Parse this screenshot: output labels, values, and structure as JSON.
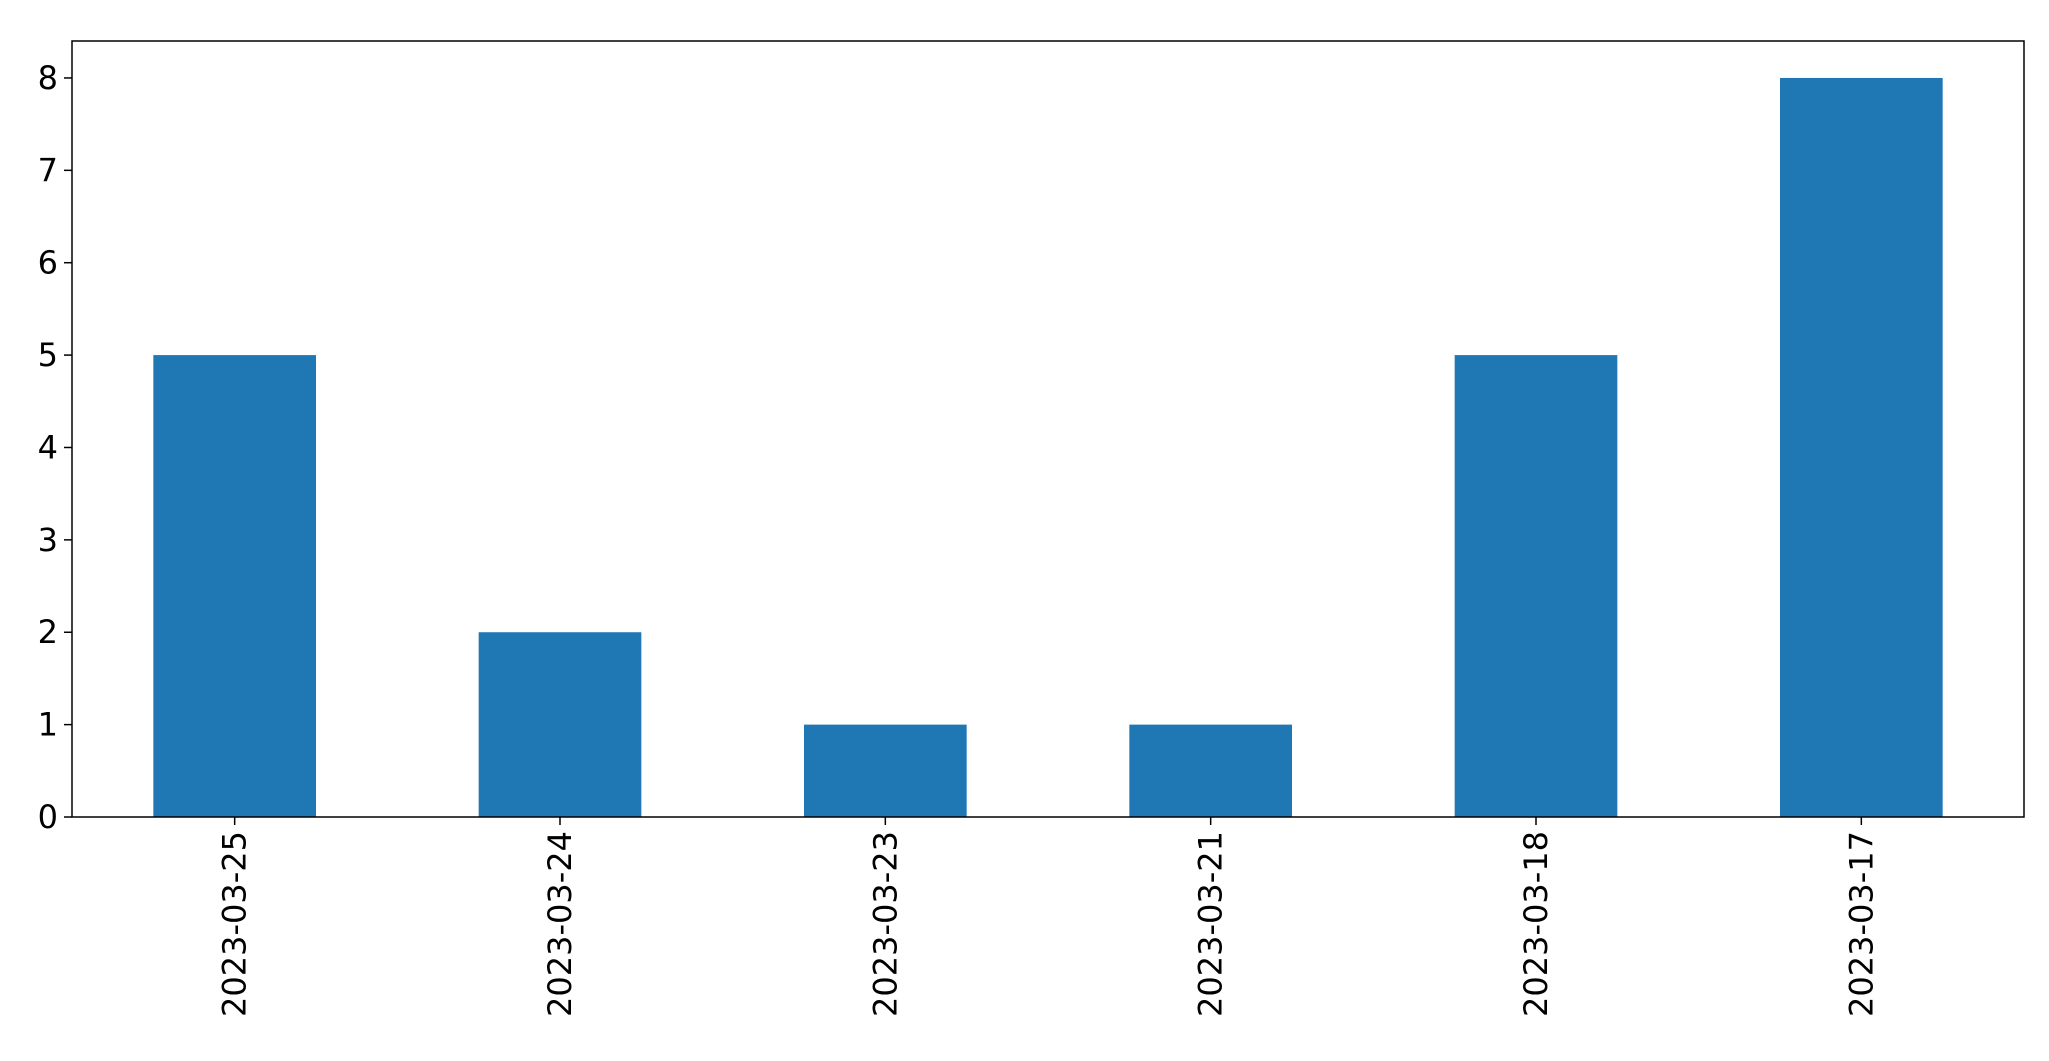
{
  "chart_data": {
    "type": "bar",
    "categories": [
      "2023-03-25",
      "2023-03-24",
      "2023-03-23",
      "2023-03-21",
      "2023-03-18",
      "2023-03-17"
    ],
    "values": [
      5,
      2,
      1,
      1,
      5,
      8
    ],
    "title": "",
    "xlabel": "",
    "ylabel": "",
    "ylim": [
      0,
      8.4
    ],
    "yticks": [
      0,
      1,
      2,
      3,
      4,
      5,
      6,
      7,
      8
    ],
    "bar_color": "#1f77b4",
    "grid": false,
    "legend": "none",
    "x_tick_rotation": "vertical"
  }
}
